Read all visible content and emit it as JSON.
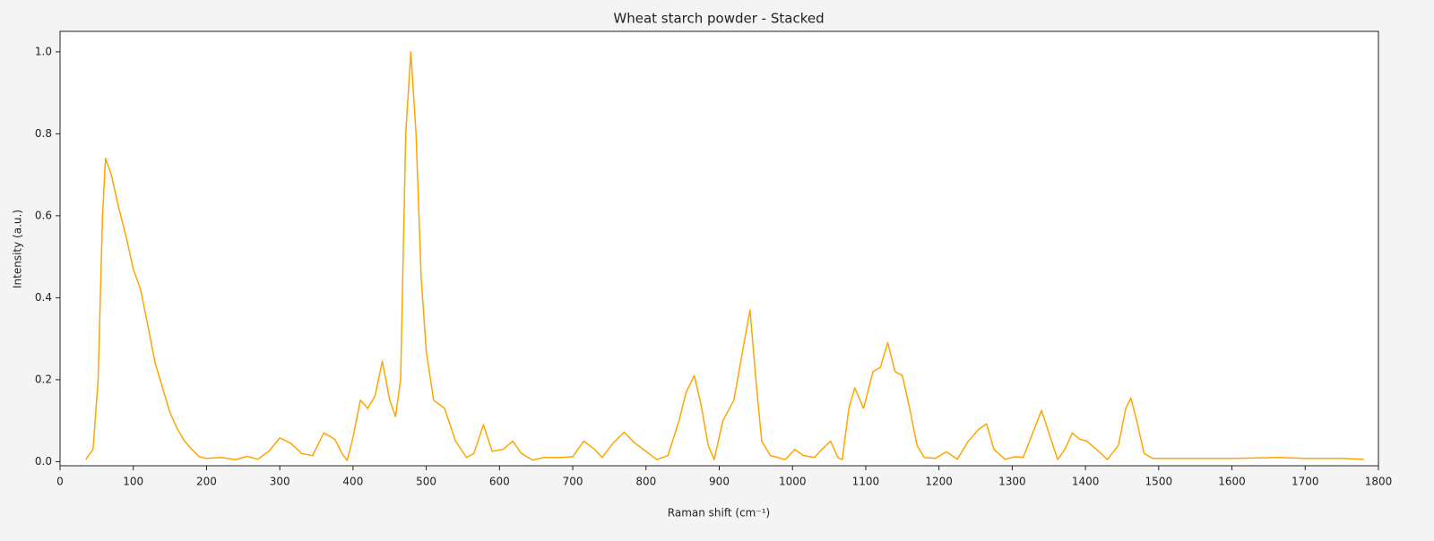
{
  "chart_data": {
    "type": "line",
    "title": "Wheat starch powder - Stacked",
    "x_label": "Raman shift (cm⁻¹)",
    "y_label": "Intensity (a.u.)",
    "color": "#ffa500",
    "x": [
      35,
      45,
      52,
      58,
      62,
      70,
      80,
      90,
      100,
      110,
      120,
      130,
      140,
      150,
      160,
      170,
      180,
      190,
      200,
      220,
      240,
      255,
      270,
      285,
      300,
      315,
      330,
      345,
      360,
      375,
      385,
      392,
      400,
      410,
      420,
      430,
      440,
      450,
      458,
      465,
      472,
      479,
      486,
      493,
      500,
      510,
      525,
      540,
      555,
      565,
      578,
      590,
      605,
      618,
      630,
      645,
      660,
      680,
      700,
      715,
      730,
      740,
      755,
      770,
      785,
      800,
      815,
      830,
      845,
      855,
      866,
      875,
      885,
      893,
      905,
      920,
      930,
      942,
      950,
      958,
      970,
      990,
      1003,
      1015,
      1030,
      1040,
      1052,
      1062,
      1068,
      1077,
      1085,
      1097,
      1110,
      1120,
      1130,
      1140,
      1150,
      1160,
      1170,
      1180,
      1195,
      1210,
      1225,
      1240,
      1255,
      1265,
      1275,
      1290,
      1305,
      1315,
      1328,
      1340,
      1350,
      1362,
      1372,
      1382,
      1392,
      1402,
      1415,
      1430,
      1445,
      1455,
      1462,
      1470,
      1480,
      1492,
      1550,
      1600,
      1665,
      1700,
      1750,
      1780
    ],
    "values": [
      0.005,
      0.03,
      0.2,
      0.6,
      0.74,
      0.7,
      0.62,
      0.55,
      0.47,
      0.42,
      0.33,
      0.24,
      0.18,
      0.12,
      0.08,
      0.05,
      0.03,
      0.012,
      0.008,
      0.01,
      0.005,
      0.013,
      0.006,
      0.025,
      0.058,
      0.045,
      0.02,
      0.015,
      0.07,
      0.055,
      0.02,
      0.003,
      0.06,
      0.15,
      0.13,
      0.16,
      0.245,
      0.15,
      0.11,
      0.2,
      0.8,
      1.0,
      0.8,
      0.45,
      0.27,
      0.15,
      0.13,
      0.05,
      0.01,
      0.02,
      0.09,
      0.025,
      0.03,
      0.05,
      0.02,
      0.004,
      0.01,
      0.01,
      0.012,
      0.05,
      0.03,
      0.01,
      0.045,
      0.072,
      0.045,
      0.025,
      0.005,
      0.015,
      0.1,
      0.17,
      0.21,
      0.14,
      0.04,
      0.005,
      0.1,
      0.15,
      0.25,
      0.37,
      0.2,
      0.05,
      0.015,
      0.005,
      0.03,
      0.015,
      0.01,
      0.03,
      0.05,
      0.01,
      0.005,
      0.13,
      0.18,
      0.13,
      0.22,
      0.23,
      0.29,
      0.22,
      0.21,
      0.13,
      0.04,
      0.01,
      0.008,
      0.024,
      0.006,
      0.05,
      0.08,
      0.092,
      0.03,
      0.006,
      0.012,
      0.01,
      0.07,
      0.125,
      0.07,
      0.005,
      0.03,
      0.07,
      0.055,
      0.05,
      0.03,
      0.005,
      0.04,
      0.13,
      0.155,
      0.1,
      0.02,
      0.008,
      0.008,
      0.008,
      0.01,
      0.008,
      0.008,
      0.006
    ],
    "xlim": [
      0,
      1800
    ],
    "xticks": [
      0,
      100,
      200,
      300,
      400,
      500,
      600,
      700,
      800,
      900,
      1000,
      1100,
      1200,
      1300,
      1400,
      1500,
      1600,
      1700,
      1800
    ],
    "ylim": [
      -0.01,
      1.05
    ],
    "yticks": [
      {
        "value": 0,
        "label": "0.0"
      },
      0.2,
      0.4,
      0.6,
      0.8,
      {
        "value": 1,
        "label": "1.0"
      }
    ]
  }
}
